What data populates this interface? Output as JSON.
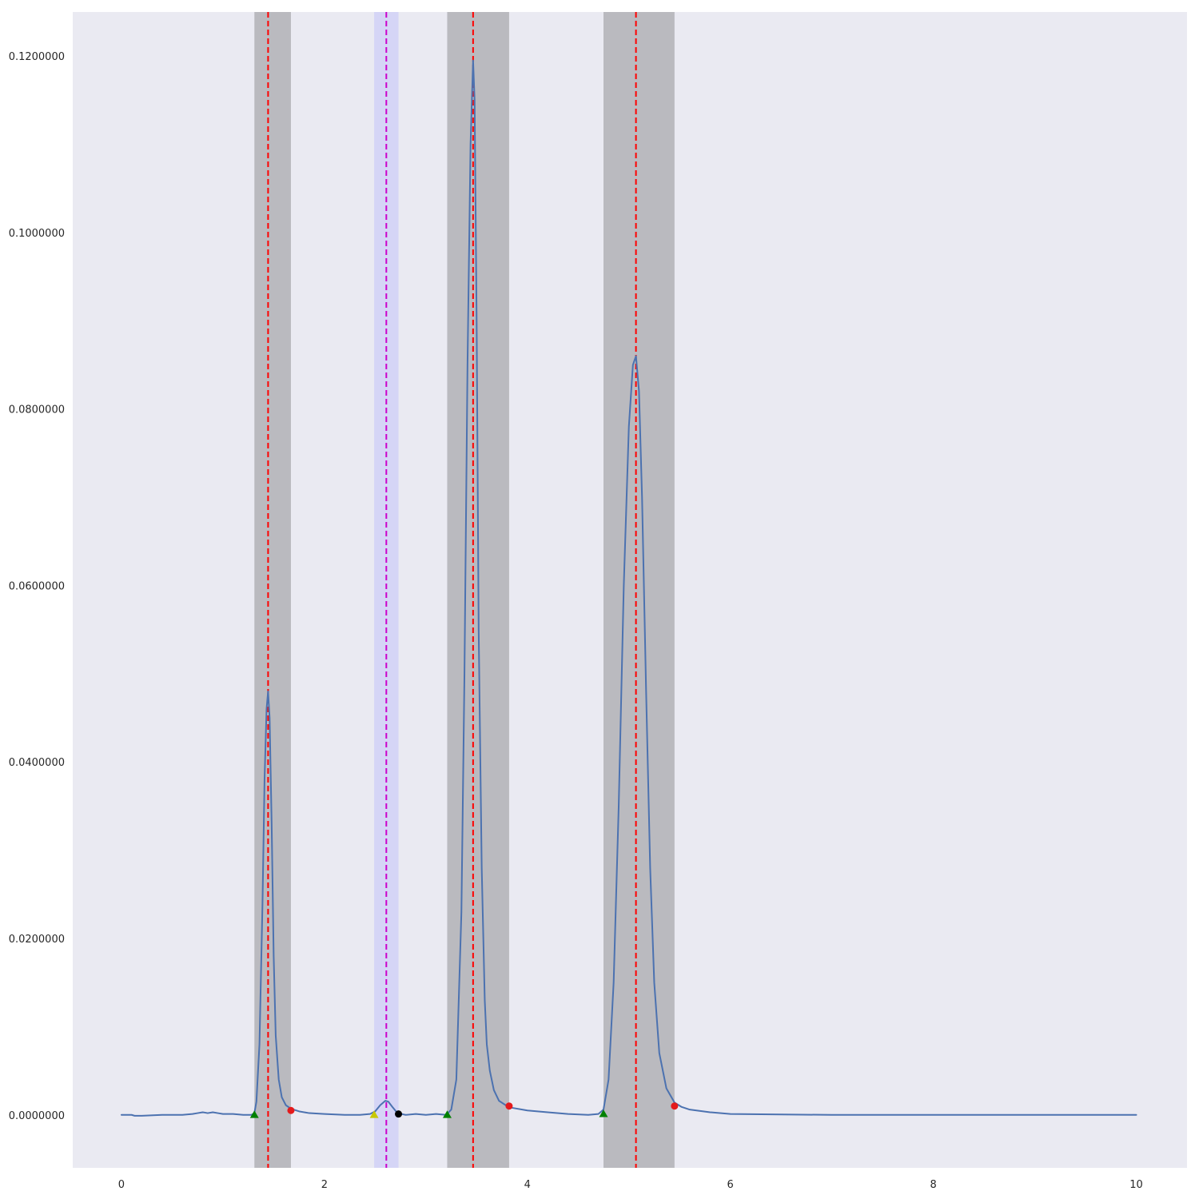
{
  "chart_data": {
    "type": "line",
    "title": "",
    "xlabel": "",
    "ylabel": "",
    "xlim": [
      -0.48,
      10.5
    ],
    "ylim": [
      -0.006,
      0.125
    ],
    "grid": false,
    "legend": "none",
    "x_ticks": [
      {
        "value": 0,
        "label": "0"
      },
      {
        "value": 2,
        "label": "2"
      },
      {
        "value": 4,
        "label": "4"
      },
      {
        "value": 6,
        "label": "6"
      },
      {
        "value": 8,
        "label": "8"
      },
      {
        "value": 10,
        "label": "10"
      }
    ],
    "y_ticks": [
      {
        "value": 0.0,
        "label": "0.0000000"
      },
      {
        "value": 0.02,
        "label": "0.0200000"
      },
      {
        "value": 0.04,
        "label": "0.0400000"
      },
      {
        "value": 0.06,
        "label": "0.0600000"
      },
      {
        "value": 0.08,
        "label": "0.0800000"
      },
      {
        "value": 0.1,
        "label": "0.1000000"
      },
      {
        "value": 0.12,
        "label": "0.1200000"
      }
    ],
    "series": [
      {
        "color": "#4c72b0",
        "x": [
          0.0,
          0.1,
          0.13,
          0.2,
          0.4,
          0.6,
          0.7,
          0.75,
          0.8,
          0.85,
          0.9,
          0.95,
          1.0,
          1.1,
          1.2,
          1.28,
          1.31,
          1.33,
          1.36,
          1.39,
          1.41,
          1.43,
          1.445,
          1.46,
          1.48,
          1.5,
          1.52,
          1.55,
          1.58,
          1.62,
          1.67,
          1.75,
          1.85,
          2.0,
          2.2,
          2.35,
          2.45,
          2.5,
          2.55,
          2.6,
          2.63,
          2.67,
          2.72,
          2.8,
          2.9,
          3.0,
          3.1,
          3.2,
          3.25,
          3.3,
          3.35,
          3.38,
          3.41,
          3.44,
          3.465,
          3.48,
          3.5,
          3.52,
          3.55,
          3.58,
          3.6,
          3.63,
          3.67,
          3.72,
          3.8,
          3.85,
          4.0,
          4.2,
          4.4,
          4.6,
          4.7,
          4.75,
          4.8,
          4.85,
          4.9,
          4.95,
          5.0,
          5.04,
          5.07,
          5.1,
          5.13,
          5.17,
          5.21,
          5.25,
          5.3,
          5.37,
          5.45,
          5.52,
          5.6,
          5.8,
          6.0,
          7.0,
          8.0,
          9.0,
          10.0
        ],
        "y": [
          0.0,
          0.0,
          -0.0001,
          -0.0001,
          0.0,
          0.0,
          0.0001,
          0.0002,
          0.0003,
          0.0002,
          0.0003,
          0.0002,
          0.0001,
          0.0001,
          0.0,
          0.0,
          0.0002,
          0.0015,
          0.008,
          0.024,
          0.038,
          0.046,
          0.048,
          0.045,
          0.033,
          0.018,
          0.009,
          0.004,
          0.002,
          0.0011,
          0.0007,
          0.0004,
          0.0002,
          0.0001,
          0.0,
          0.0,
          0.0001,
          0.0004,
          0.0011,
          0.0016,
          0.0015,
          0.0009,
          0.0002,
          0.0,
          0.0001,
          0.0,
          0.0001,
          0.0,
          0.0006,
          0.004,
          0.023,
          0.05,
          0.085,
          0.11,
          0.1195,
          0.115,
          0.09,
          0.055,
          0.028,
          0.013,
          0.008,
          0.005,
          0.0028,
          0.0016,
          0.001,
          0.0008,
          0.0005,
          0.0003,
          0.0001,
          0.0,
          0.0001,
          0.0006,
          0.004,
          0.015,
          0.035,
          0.06,
          0.078,
          0.085,
          0.086,
          0.082,
          0.07,
          0.048,
          0.028,
          0.015,
          0.007,
          0.003,
          0.0014,
          0.0009,
          0.0006,
          0.0003,
          0.0001,
          0.0,
          0.0,
          0.0,
          0.0
        ]
      }
    ],
    "shaded_regions": [
      {
        "x_start": 1.31,
        "x_end": 1.67,
        "color": "#808080",
        "opacity": 0.45
      },
      {
        "x_start": 2.49,
        "x_end": 2.73,
        "color": "#b0b0ff",
        "opacity": 0.35
      },
      {
        "x_start": 3.21,
        "x_end": 3.82,
        "color": "#808080",
        "opacity": 0.45
      },
      {
        "x_start": 4.75,
        "x_end": 5.45,
        "color": "#808080",
        "opacity": 0.45
      }
    ],
    "vertical_lines": [
      {
        "x": 1.445,
        "color": "#ff0000",
        "style": "dashed"
      },
      {
        "x": 2.61,
        "color": "#cc00cc",
        "style": "dashed"
      },
      {
        "x": 3.465,
        "color": "#ff0000",
        "style": "dashed"
      },
      {
        "x": 5.07,
        "color": "#ff0000",
        "style": "dashed"
      }
    ],
    "markers": [
      {
        "x": 1.31,
        "y": 0.0,
        "shape": "triangle",
        "color": "#008000"
      },
      {
        "x": 1.67,
        "y": 0.0005,
        "shape": "circle",
        "color": "#e41a1c"
      },
      {
        "x": 2.49,
        "y": 0.0,
        "shape": "triangle",
        "color": "#c8c800"
      },
      {
        "x": 2.73,
        "y": 0.0001,
        "shape": "circle",
        "color": "#000000"
      },
      {
        "x": 3.21,
        "y": 0.0,
        "shape": "triangle",
        "color": "#008000"
      },
      {
        "x": 3.82,
        "y": 0.001,
        "shape": "circle",
        "color": "#e41a1c"
      },
      {
        "x": 4.75,
        "y": 0.0001,
        "shape": "triangle",
        "color": "#008000"
      },
      {
        "x": 5.45,
        "y": 0.001,
        "shape": "circle",
        "color": "#e41a1c"
      }
    ],
    "colors": {
      "plot_background": "#eaeaf2",
      "page_background": "#ffffff"
    }
  }
}
